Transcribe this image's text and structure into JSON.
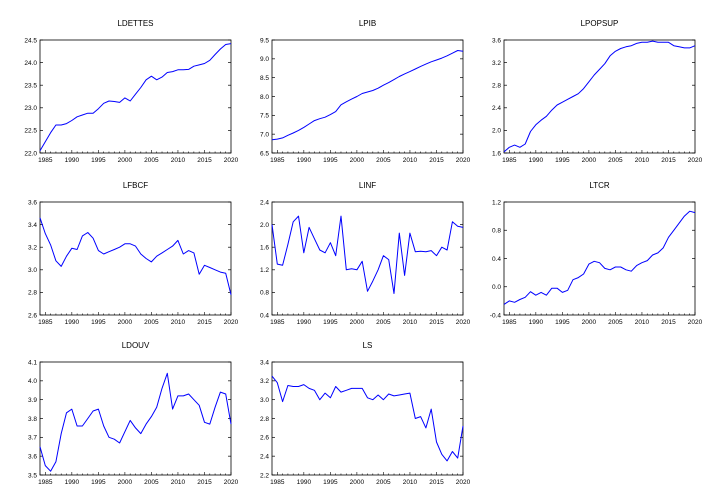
{
  "chart_data": [
    {
      "type": "line",
      "title": "LDETTES",
      "color": "#0000ff",
      "x": [
        1984,
        1985,
        1986,
        1987,
        1988,
        1989,
        1990,
        1991,
        1992,
        1993,
        1994,
        1995,
        1996,
        1997,
        1998,
        1999,
        2000,
        2001,
        2002,
        2003,
        2004,
        2005,
        2006,
        2007,
        2008,
        2009,
        2010,
        2011,
        2012,
        2013,
        2014,
        2015,
        2016,
        2017,
        2018,
        2019,
        2020
      ],
      "values": [
        22.05,
        22.25,
        22.45,
        22.62,
        22.62,
        22.65,
        22.72,
        22.8,
        22.84,
        22.88,
        22.88,
        22.98,
        23.1,
        23.15,
        23.14,
        23.12,
        23.22,
        23.15,
        23.3,
        23.45,
        23.62,
        23.7,
        23.62,
        23.68,
        23.78,
        23.8,
        23.84,
        23.84,
        23.85,
        23.92,
        23.95,
        23.98,
        24.05,
        24.18,
        24.3,
        24.4,
        24.42
      ],
      "xlim": [
        1984,
        2020
      ],
      "ylim": [
        22.0,
        24.5
      ],
      "yticks": [
        "22.0",
        "22.5",
        "23.0",
        "23.5",
        "24.0",
        "24.5"
      ],
      "xticks": [
        "1985",
        "1990",
        "1995",
        "2000",
        "2005",
        "2010",
        "2015",
        "2020"
      ]
    },
    {
      "type": "line",
      "title": "LPIB",
      "color": "#0000ff",
      "x": [
        1984,
        1985,
        1986,
        1987,
        1988,
        1989,
        1990,
        1991,
        1992,
        1993,
        1994,
        1995,
        1996,
        1997,
        1998,
        1999,
        2000,
        2001,
        2002,
        2003,
        2004,
        2005,
        2006,
        2007,
        2008,
        2009,
        2010,
        2011,
        2012,
        2013,
        2014,
        2015,
        2016,
        2017,
        2018,
        2019,
        2020
      ],
      "values": [
        6.85,
        6.87,
        6.9,
        6.97,
        7.03,
        7.1,
        7.18,
        7.27,
        7.36,
        7.41,
        7.45,
        7.52,
        7.6,
        7.78,
        7.86,
        7.93,
        8.0,
        8.08,
        8.12,
        8.16,
        8.22,
        8.3,
        8.37,
        8.45,
        8.53,
        8.6,
        8.66,
        8.73,
        8.8,
        8.86,
        8.92,
        8.97,
        9.02,
        9.08,
        9.15,
        9.22,
        9.2
      ],
      "xlim": [
        1984,
        2020
      ],
      "ylim": [
        6.5,
        9.5
      ],
      "yticks": [
        "6.5",
        "7.0",
        "7.5",
        "8.0",
        "8.5",
        "9.0",
        "9.5"
      ],
      "xticks": [
        "1985",
        "1990",
        "1995",
        "2000",
        "2005",
        "2010",
        "2015",
        "2020"
      ]
    },
    {
      "type": "line",
      "title": "LPOPSUP",
      "color": "#0000ff",
      "x": [
        1984,
        1985,
        1986,
        1987,
        1988,
        1989,
        1990,
        1991,
        1992,
        1993,
        1994,
        1995,
        1996,
        1997,
        1998,
        1999,
        2000,
        2001,
        2002,
        2003,
        2004,
        2005,
        2006,
        2007,
        2008,
        2009,
        2010,
        2011,
        2012,
        2013,
        2014,
        2015,
        2016,
        2017,
        2018,
        2019,
        2020
      ],
      "values": [
        1.62,
        1.7,
        1.74,
        1.7,
        1.76,
        1.98,
        2.1,
        2.18,
        2.25,
        2.36,
        2.45,
        2.5,
        2.55,
        2.6,
        2.65,
        2.74,
        2.86,
        2.98,
        3.08,
        3.18,
        3.32,
        3.4,
        3.45,
        3.48,
        3.5,
        3.54,
        3.56,
        3.56,
        3.58,
        3.56,
        3.56,
        3.56,
        3.5,
        3.48,
        3.46,
        3.46,
        3.5
      ],
      "xlim": [
        1984,
        2020
      ],
      "ylim": [
        1.6,
        3.6
      ],
      "yticks": [
        "1.6",
        "2.0",
        "2.4",
        "2.8",
        "3.2",
        "3.6"
      ],
      "xticks": [
        "1985",
        "1990",
        "1995",
        "2000",
        "2005",
        "2010",
        "2015",
        "2020"
      ]
    },
    {
      "type": "line",
      "title": "LFBCF",
      "color": "#0000ff",
      "x": [
        1984,
        1985,
        1986,
        1987,
        1988,
        1989,
        1990,
        1991,
        1992,
        1993,
        1994,
        1995,
        1996,
        1997,
        1998,
        1999,
        2000,
        2001,
        2002,
        2003,
        2004,
        2005,
        2006,
        2007,
        2008,
        2009,
        2010,
        2011,
        2012,
        2013,
        2014,
        2015,
        2016,
        2017,
        2018,
        2019,
        2020
      ],
      "values": [
        3.46,
        3.32,
        3.22,
        3.08,
        3.03,
        3.12,
        3.19,
        3.18,
        3.3,
        3.33,
        3.28,
        3.17,
        3.14,
        3.16,
        3.18,
        3.2,
        3.23,
        3.23,
        3.21,
        3.14,
        3.1,
        3.07,
        3.12,
        3.15,
        3.18,
        3.21,
        3.26,
        3.14,
        3.17,
        3.15,
        2.96,
        3.04,
        3.02,
        3.0,
        2.98,
        2.97,
        2.78
      ],
      "xlim": [
        1984,
        2020
      ],
      "ylim": [
        2.6,
        3.6
      ],
      "yticks": [
        "2.6",
        "2.8",
        "3.0",
        "3.2",
        "3.4",
        "3.6"
      ],
      "xticks": [
        "1985",
        "1990",
        "1995",
        "2000",
        "2005",
        "2010",
        "2015",
        "2020"
      ]
    },
    {
      "type": "line",
      "title": "LINF",
      "color": "#0000ff",
      "x": [
        1984,
        1985,
        1986,
        1987,
        1988,
        1989,
        1990,
        1991,
        1992,
        1993,
        1994,
        1995,
        1996,
        1997,
        1998,
        1999,
        2000,
        2001,
        2002,
        2003,
        2004,
        2005,
        2006,
        2007,
        2008,
        2009,
        2010,
        2011,
        2012,
        2013,
        2014,
        2015,
        2016,
        2017,
        2018,
        2019,
        2020
      ],
      "values": [
        2.0,
        1.3,
        1.28,
        1.65,
        2.05,
        2.15,
        1.5,
        1.95,
        1.75,
        1.55,
        1.5,
        1.68,
        1.45,
        2.15,
        1.2,
        1.22,
        1.2,
        1.35,
        0.82,
        1.0,
        1.2,
        1.45,
        1.38,
        0.78,
        1.85,
        1.1,
        1.85,
        1.52,
        1.53,
        1.52,
        1.54,
        1.45,
        1.6,
        1.55,
        2.05,
        1.97,
        1.95
      ],
      "xlim": [
        1984,
        2020
      ],
      "ylim": [
        0.4,
        2.4
      ],
      "yticks": [
        "0.4",
        "0.8",
        "1.2",
        "1.6",
        "2.0",
        "2.4"
      ],
      "xticks": [
        "1985",
        "1990",
        "1995",
        "2000",
        "2005",
        "2010",
        "2015",
        "2020"
      ]
    },
    {
      "type": "line",
      "title": "LTCR",
      "color": "#0000ff",
      "x": [
        1984,
        1985,
        1986,
        1987,
        1988,
        1989,
        1990,
        1991,
        1992,
        1993,
        1994,
        1995,
        1996,
        1997,
        1998,
        1999,
        2000,
        2001,
        2002,
        2003,
        2004,
        2005,
        2006,
        2007,
        2008,
        2009,
        2010,
        2011,
        2012,
        2013,
        2014,
        2015,
        2016,
        2017,
        2018,
        2019,
        2020
      ],
      "values": [
        -0.25,
        -0.2,
        -0.22,
        -0.18,
        -0.15,
        -0.07,
        -0.12,
        -0.08,
        -0.12,
        -0.02,
        -0.02,
        -0.08,
        -0.05,
        0.1,
        0.13,
        0.18,
        0.32,
        0.36,
        0.34,
        0.26,
        0.24,
        0.28,
        0.28,
        0.24,
        0.22,
        0.3,
        0.34,
        0.37,
        0.45,
        0.48,
        0.55,
        0.7,
        0.8,
        0.9,
        1.0,
        1.07,
        1.05
      ],
      "xlim": [
        1984,
        2020
      ],
      "ylim": [
        -0.4,
        1.2
      ],
      "yticks": [
        "-0.4",
        "0.0",
        "0.4",
        "0.8",
        "1.2"
      ],
      "xticks": [
        "1985",
        "1990",
        "1995",
        "2000",
        "2005",
        "2010",
        "2015",
        "2020"
      ]
    },
    {
      "type": "line",
      "title": "LDOUV",
      "color": "#0000ff",
      "x": [
        1984,
        1985,
        1986,
        1987,
        1988,
        1989,
        1990,
        1991,
        1992,
        1993,
        1994,
        1995,
        1996,
        1997,
        1998,
        1999,
        2000,
        2001,
        2002,
        2003,
        2004,
        2005,
        2006,
        2007,
        2008,
        2009,
        2010,
        2011,
        2012,
        2013,
        2014,
        2015,
        2016,
        2017,
        2018,
        2019,
        2020
      ],
      "values": [
        3.65,
        3.55,
        3.52,
        3.57,
        3.72,
        3.83,
        3.85,
        3.76,
        3.76,
        3.8,
        3.84,
        3.85,
        3.76,
        3.7,
        3.69,
        3.67,
        3.73,
        3.79,
        3.75,
        3.72,
        3.77,
        3.81,
        3.86,
        3.96,
        4.04,
        3.85,
        3.92,
        3.92,
        3.93,
        3.9,
        3.87,
        3.78,
        3.77,
        3.86,
        3.94,
        3.93,
        3.77
      ],
      "xlim": [
        1984,
        2020
      ],
      "ylim": [
        3.5,
        4.1
      ],
      "yticks": [
        "3.5",
        "3.6",
        "3.7",
        "3.8",
        "3.9",
        "4.0",
        "4.1"
      ],
      "xticks": [
        "1985",
        "1990",
        "1995",
        "2000",
        "2005",
        "2010",
        "2015",
        "2020"
      ]
    },
    {
      "type": "line",
      "title": "LS",
      "color": "#0000ff",
      "x": [
        1984,
        1985,
        1986,
        1987,
        1988,
        1989,
        1990,
        1991,
        1992,
        1993,
        1994,
        1995,
        1996,
        1997,
        1998,
        1999,
        2000,
        2001,
        2002,
        2003,
        2004,
        2005,
        2006,
        2007,
        2008,
        2009,
        2010,
        2011,
        2012,
        2013,
        2014,
        2015,
        2016,
        2017,
        2018,
        2019,
        2020
      ],
      "values": [
        3.25,
        3.18,
        2.98,
        3.15,
        3.14,
        3.14,
        3.16,
        3.12,
        3.1,
        3.0,
        3.07,
        3.02,
        3.14,
        3.08,
        3.1,
        3.12,
        3.12,
        3.12,
        3.02,
        3.0,
        3.05,
        3.0,
        3.06,
        3.04,
        3.05,
        3.06,
        3.07,
        2.8,
        2.82,
        2.7,
        2.9,
        2.55,
        2.42,
        2.35,
        2.45,
        2.38,
        2.72
      ],
      "xlim": [
        1984,
        2020
      ],
      "ylim": [
        2.2,
        3.4
      ],
      "yticks": [
        "2.2",
        "2.4",
        "2.6",
        "2.8",
        "3.0",
        "3.2",
        "3.4"
      ],
      "xticks": [
        "1985",
        "1990",
        "1995",
        "2000",
        "2005",
        "2010",
        "2015",
        "2020"
      ]
    }
  ]
}
